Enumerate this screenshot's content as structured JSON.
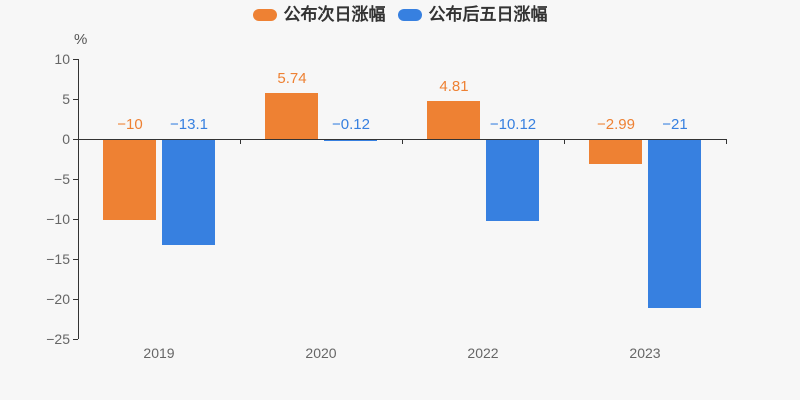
{
  "background_color": "#f7f7f7",
  "legend": {
    "items": [
      {
        "label": "公布次日涨幅",
        "color": "#ee8133"
      },
      {
        "label": "公布后五日涨幅",
        "color": "#3780e0"
      }
    ]
  },
  "y_axis": {
    "unit_label": "%",
    "tick_values": [
      10,
      5,
      0,
      -5,
      -10,
      -15,
      -20,
      -25
    ],
    "tick_labels": [
      "10",
      "5",
      "0",
      "−5",
      "−10",
      "−15",
      "−20",
      "−25"
    ]
  },
  "chart_data": {
    "type": "bar",
    "categories": [
      "2019",
      "2020",
      "2022",
      "2023"
    ],
    "series": [
      {
        "name": "公布次日涨幅",
        "color": "#ee8133",
        "values": [
          -10,
          5.74,
          4.81,
          -2.99
        ],
        "labels": [
          "−10",
          "5.74",
          "4.81",
          "−2.99"
        ]
      },
      {
        "name": "公布后五日涨幅",
        "color": "#3780e0",
        "values": [
          -13.1,
          -0.12,
          -10.12,
          -21
        ],
        "labels": [
          "−13.1",
          "−0.12",
          "−10.12",
          "−21"
        ]
      }
    ],
    "title": "",
    "xlabel": "",
    "ylabel": "%",
    "ylim": [
      -25,
      10
    ],
    "y_tick_step": 5,
    "legend_position": "top",
    "grid": false,
    "axis_color": "#333333",
    "tick_label_color": "#666666"
  }
}
